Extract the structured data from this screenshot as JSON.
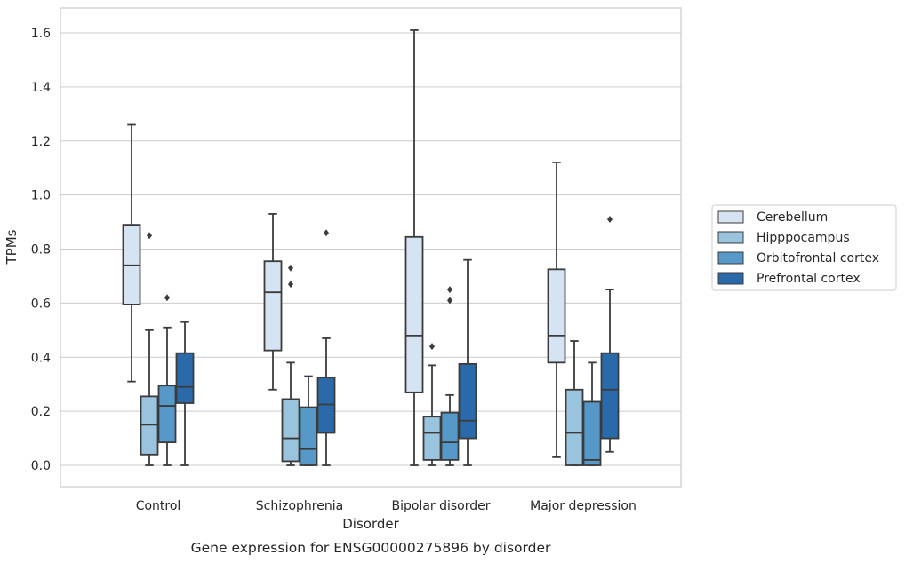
{
  "chart_data": {
    "type": "boxplot",
    "title": "",
    "caption": "Gene expression for ENSG00000275896 by disorder",
    "xlabel": "Disorder",
    "ylabel": "TPMs",
    "ylim": [
      -0.08,
      1.69
    ],
    "yticks": [
      "0.0",
      "0.2",
      "0.4",
      "0.6",
      "0.8",
      "1.0",
      "1.2",
      "1.4",
      "1.6"
    ],
    "grid": "horizontal",
    "legend_position": "right",
    "categories": [
      "Control",
      "Schizophrenia",
      "Bipolar disorder",
      "Major depression"
    ],
    "series": [
      {
        "name": "Cerebellum",
        "color": "#d5e3f3",
        "boxes": [
          {
            "whislo": 0.31,
            "q1": 0.595,
            "med": 0.74,
            "q3": 0.89,
            "whishi": 1.26,
            "fliers": []
          },
          {
            "whislo": 0.28,
            "q1": 0.425,
            "med": 0.64,
            "q3": 0.755,
            "whishi": 0.93,
            "fliers": []
          },
          {
            "whislo": 0.0,
            "q1": 0.27,
            "med": 0.48,
            "q3": 0.845,
            "whishi": 1.61,
            "fliers": []
          },
          {
            "whislo": 0.03,
            "q1": 0.38,
            "med": 0.48,
            "q3": 0.725,
            "whishi": 1.12,
            "fliers": []
          }
        ]
      },
      {
        "name": "Hipppocampus",
        "color": "#9ac4de",
        "boxes": [
          {
            "whislo": 0.0,
            "q1": 0.04,
            "med": 0.15,
            "q3": 0.255,
            "whishi": 0.5,
            "fliers": [
              0.85
            ]
          },
          {
            "whislo": 0.0,
            "q1": 0.015,
            "med": 0.1,
            "q3": 0.245,
            "whishi": 0.38,
            "fliers": [
              0.67,
              0.73
            ]
          },
          {
            "whislo": 0.0,
            "q1": 0.02,
            "med": 0.12,
            "q3": 0.18,
            "whishi": 0.37,
            "fliers": [
              0.44
            ]
          },
          {
            "whislo": 0.0,
            "q1": 0.0,
            "med": 0.12,
            "q3": 0.28,
            "whishi": 0.46,
            "fliers": []
          }
        ]
      },
      {
        "name": "Orbitofrontal cortex",
        "color": "#5699c8",
        "boxes": [
          {
            "whislo": 0.0,
            "q1": 0.085,
            "med": 0.22,
            "q3": 0.295,
            "whishi": 0.51,
            "fliers": [
              0.62
            ]
          },
          {
            "whislo": 0.0,
            "q1": 0.0,
            "med": 0.06,
            "q3": 0.215,
            "whishi": 0.33,
            "fliers": []
          },
          {
            "whislo": 0.0,
            "q1": 0.02,
            "med": 0.085,
            "q3": 0.195,
            "whishi": 0.26,
            "fliers": [
              0.61,
              0.65
            ]
          },
          {
            "whislo": 0.0,
            "q1": 0.0,
            "med": 0.02,
            "q3": 0.235,
            "whishi": 0.38,
            "fliers": []
          }
        ]
      },
      {
        "name": "Prefrontal cortex",
        "color": "#2a6aab",
        "boxes": [
          {
            "whislo": 0.0,
            "q1": 0.23,
            "med": 0.29,
            "q3": 0.415,
            "whishi": 0.53,
            "fliers": []
          },
          {
            "whislo": 0.0,
            "q1": 0.12,
            "med": 0.225,
            "q3": 0.325,
            "whishi": 0.47,
            "fliers": [
              0.86
            ]
          },
          {
            "whislo": 0.0,
            "q1": 0.1,
            "med": 0.165,
            "q3": 0.375,
            "whishi": 0.76,
            "fliers": []
          },
          {
            "whislo": 0.05,
            "q1": 0.1,
            "med": 0.28,
            "q3": 0.415,
            "whishi": 0.65,
            "fliers": [
              0.91
            ]
          }
        ]
      }
    ]
  }
}
